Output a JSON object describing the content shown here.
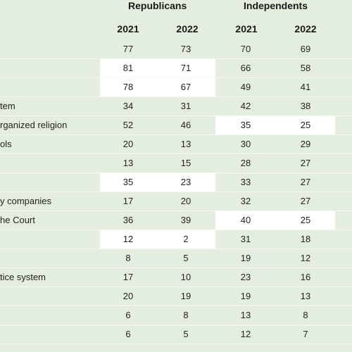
{
  "headers": {
    "group1": "Republicans",
    "group2": "Independents",
    "years": [
      "2021",
      "2022",
      "2021",
      "2022"
    ]
  },
  "rows": [
    {
      "label": "",
      "values": [
        "77",
        "73",
        "70",
        "69"
      ],
      "highlight": null
    },
    {
      "label": "",
      "values": [
        "81",
        "71",
        "66",
        "58"
      ],
      "highlight": "rep"
    },
    {
      "label": "",
      "values": [
        "78",
        "67",
        "49",
        "41"
      ],
      "highlight": "rep"
    },
    {
      "label": "tem",
      "values": [
        "34",
        "31",
        "42",
        "38"
      ],
      "highlight": null
    },
    {
      "label": "rganized religion",
      "values": [
        "52",
        "46",
        "35",
        "25"
      ],
      "highlight": "ind"
    },
    {
      "label": "ols",
      "values": [
        "20",
        "13",
        "30",
        "29"
      ],
      "highlight": null
    },
    {
      "label": "",
      "values": [
        "13",
        "15",
        "28",
        "27"
      ],
      "highlight": null
    },
    {
      "label": "",
      "values": [
        "35",
        "23",
        "33",
        "27"
      ],
      "highlight": "rep"
    },
    {
      "label": "y companies",
      "values": [
        "17",
        "20",
        "32",
        "27"
      ],
      "highlight": null
    },
    {
      "label": "he Court",
      "values": [
        "36",
        "39",
        "40",
        "25"
      ],
      "highlight": "ind"
    },
    {
      "label": "",
      "values": [
        "12",
        "2",
        "31",
        "18"
      ],
      "highlight": "rep"
    },
    {
      "label": "",
      "values": [
        "8",
        "5",
        "19",
        "12"
      ],
      "highlight": null
    },
    {
      "label": "tice system",
      "values": [
        "17",
        "10",
        "23",
        "16"
      ],
      "highlight": null
    },
    {
      "label": "",
      "values": [
        "20",
        "19",
        "19",
        "13"
      ],
      "highlight": null
    },
    {
      "label": "",
      "values": [
        "6",
        "8",
        "13",
        "8"
      ],
      "highlight": null
    },
    {
      "label": "",
      "values": [
        "6",
        "5",
        "12",
        "7"
      ],
      "highlight": null
    }
  ]
}
